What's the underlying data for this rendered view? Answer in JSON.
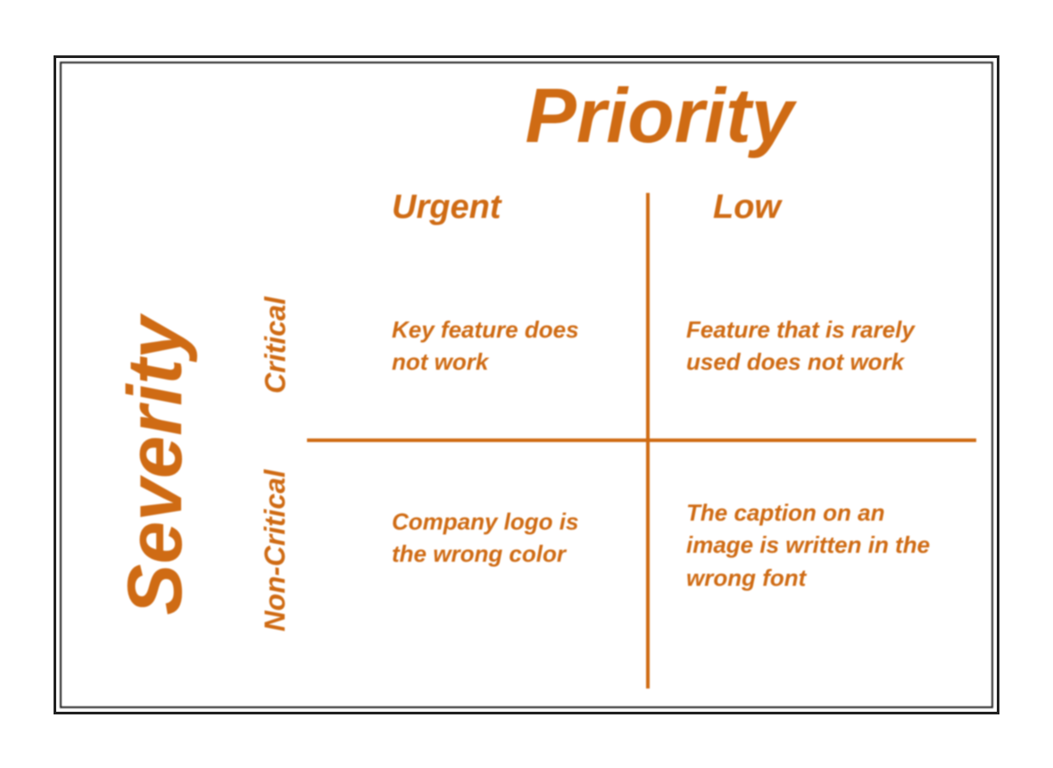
{
  "matrix": {
    "type": "quadrant",
    "x_axis": {
      "title": "Priority",
      "title_fontsize": 86,
      "labels": [
        "Urgent",
        "Low"
      ],
      "label_fontsize": 38
    },
    "y_axis": {
      "title": "Severity",
      "title_fontsize": 86,
      "labels": [
        "Critical",
        "Non-Critical"
      ],
      "label_fontsize": 32
    },
    "quadrants": {
      "top_left": "Key feature does not work",
      "top_right": "Feature that is rarely used does not work",
      "bottom_left": "Company logo is the wrong color",
      "bottom_right": "The caption on an image is written in the wrong font"
    },
    "cell_fontsize": 26,
    "colors": {
      "text": "#cf6b14",
      "lines": "#cf6b14",
      "frame_outer": "#222222",
      "frame_inner": "#222222",
      "background": "#ffffff"
    },
    "line_width": 4,
    "font_style": "italic",
    "font_weight": "bold",
    "font_family": "Verdana, Geneva, sans-serif"
  }
}
